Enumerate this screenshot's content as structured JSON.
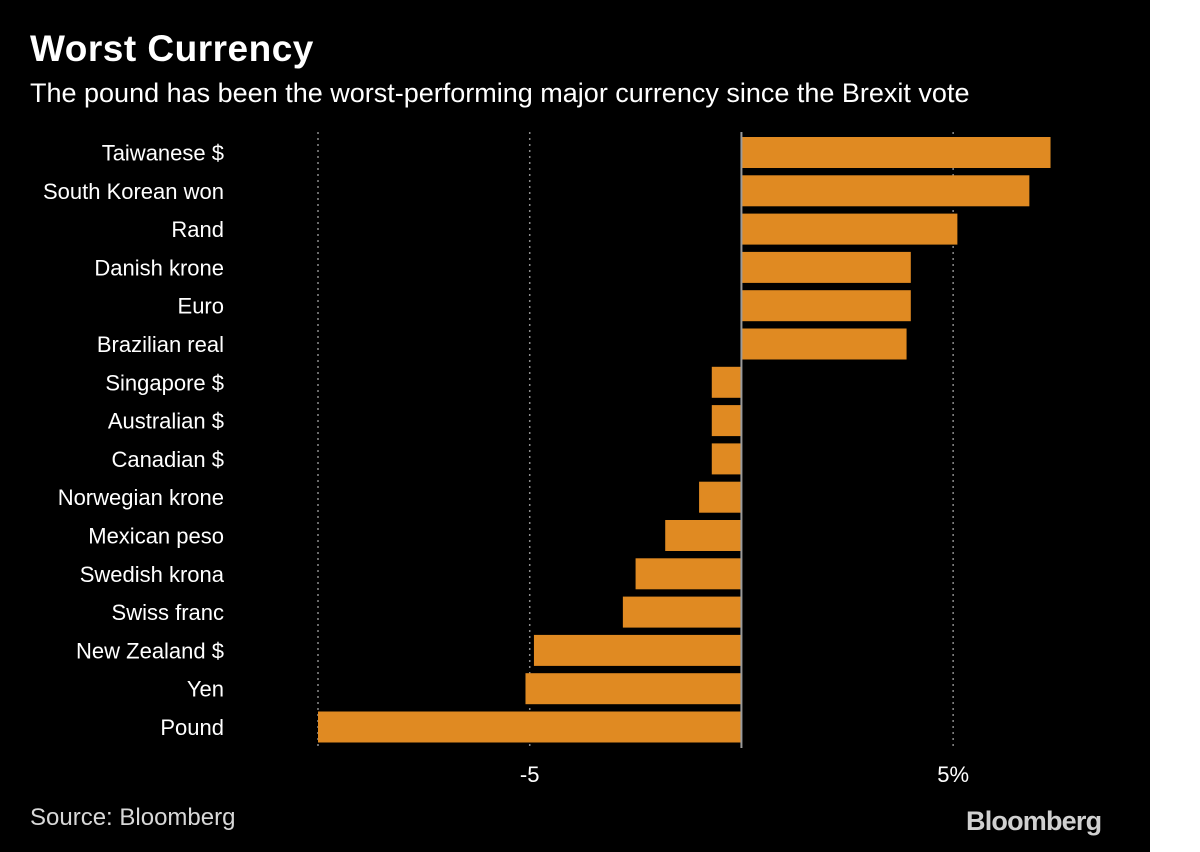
{
  "header": {
    "title": "Worst Currency",
    "subtitle": "The pound has been the worst-performing major currency since the Brexit vote"
  },
  "footer": {
    "source": "Source: Bloomberg",
    "brand": "Bloomberg"
  },
  "colors": {
    "background": "#000000",
    "bar": "#e08a22",
    "text": "#ffffff",
    "gridline": "#8a8a8a"
  },
  "chart_data": {
    "type": "bar",
    "orientation": "horizontal",
    "title": "Worst Currency",
    "subtitle": "The pound has been the worst-performing major currency since the Brexit vote",
    "unit": "%",
    "categories": [
      "Taiwanese $",
      "South Korean won",
      "Rand",
      "Danish krone",
      "Euro",
      "Brazilian real",
      "Singapore $",
      "Australian $",
      "Canadian $",
      "Norwegian krone",
      "Mexican peso",
      "Swedish krona",
      "Swiss franc",
      "New Zealand $",
      "Yen",
      "Pound"
    ],
    "values": [
      7.3,
      6.8,
      5.1,
      4.0,
      4.0,
      3.9,
      -0.7,
      -0.7,
      -0.7,
      -1.0,
      -1.8,
      -2.5,
      -2.8,
      -4.9,
      -5.1,
      -10.0
    ],
    "xlim": [
      -10,
      7.5
    ],
    "xticks": [
      {
        "value": -5,
        "label": "-5"
      },
      {
        "value": 5,
        "label": "5%"
      }
    ],
    "grid": true,
    "legend": "none"
  }
}
